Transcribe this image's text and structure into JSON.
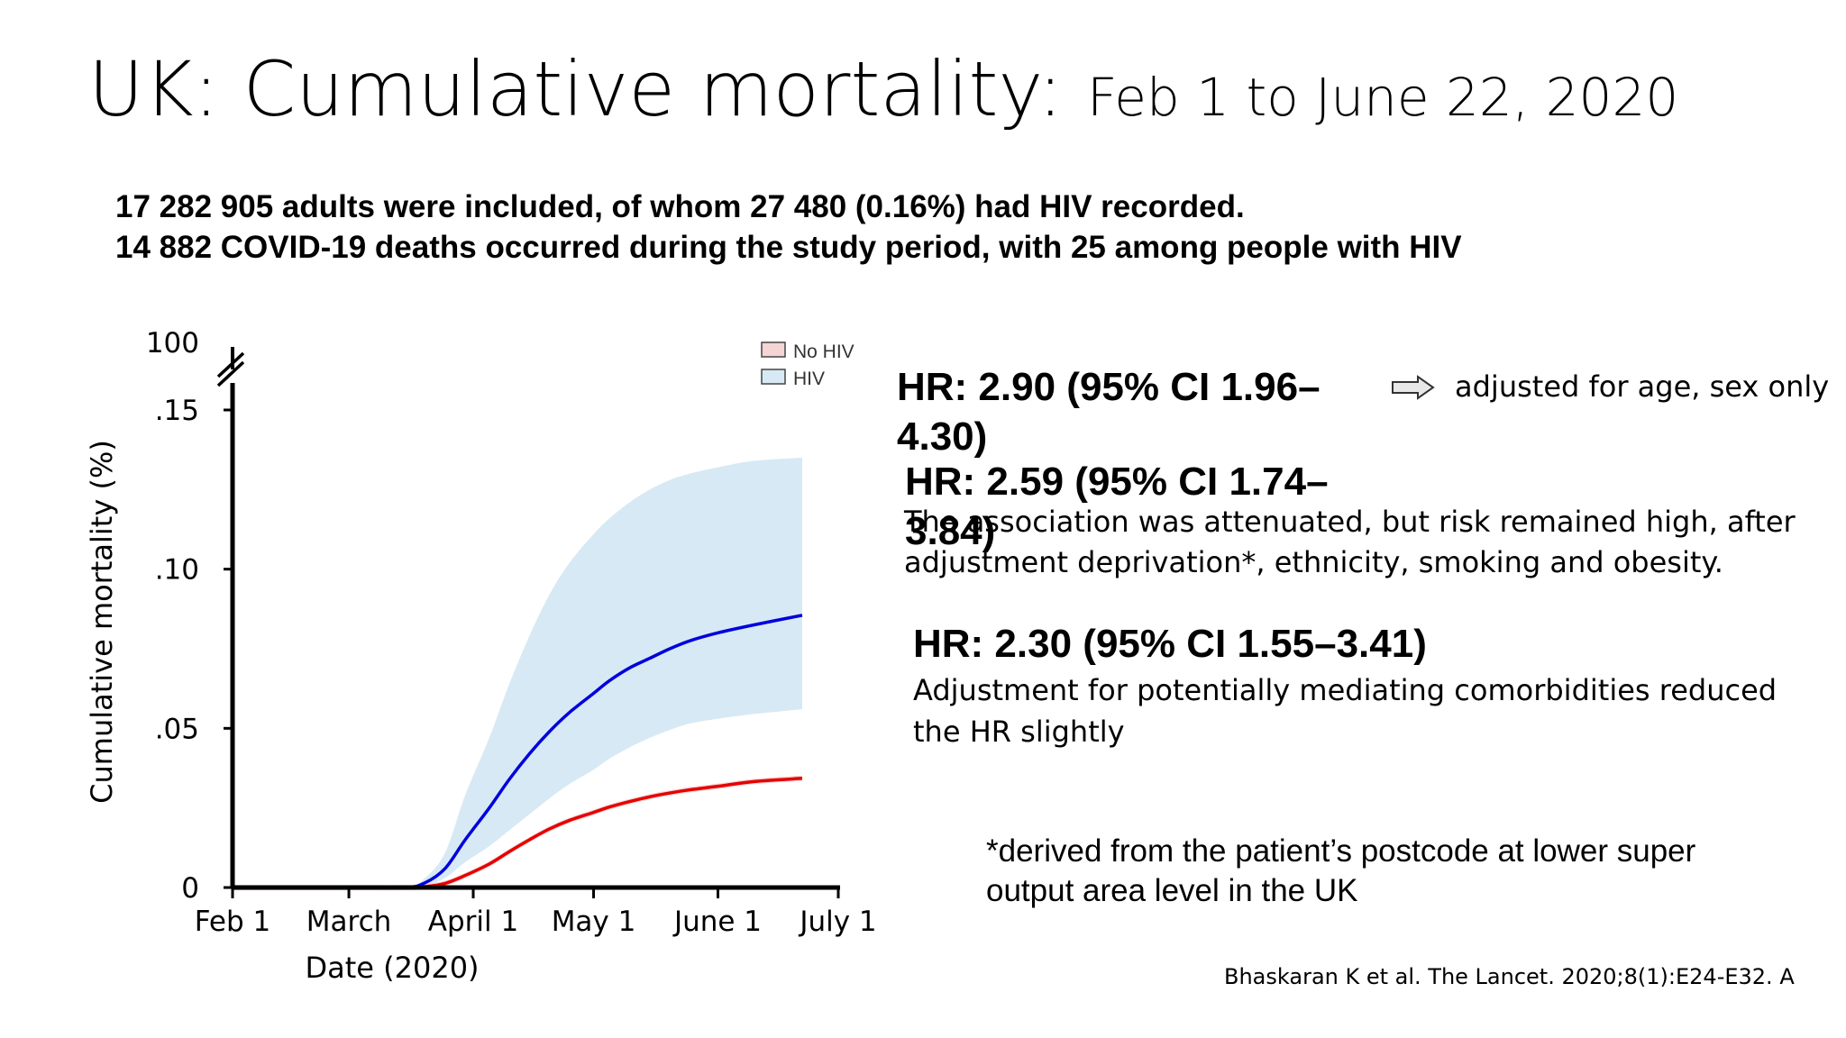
{
  "title": {
    "main": "UK: Cumulative mortality:",
    "sub": "Feb 1 to June 22, 2020"
  },
  "summary": [
    "17 282 905 adults were included, of whom 27 480 (0.16%) had HIV recorded.",
    "14 882 COVID-19 deaths occurred during the study period, with 25 among people with HIV"
  ],
  "chart_data": {
    "type": "line",
    "xlabel": "Date (2020)",
    "ylabel": "Cumulative mortality (%)",
    "x_ticks": [
      "Feb 1",
      "March",
      "April 1",
      "May 1",
      "June 1",
      "July 1"
    ],
    "y_ticks": [
      "0",
      ".05",
      ".10",
      ".15"
    ],
    "y_break_label": "100",
    "ylim": [
      0,
      0.15
    ],
    "xlim": [
      "2020-02-01",
      "2020-07-01"
    ],
    "legend_position": "top-right",
    "x": [
      "2020-02-01",
      "2020-03-01",
      "2020-03-15",
      "2020-03-20",
      "2020-03-25",
      "2020-03-30",
      "2020-04-05",
      "2020-04-10",
      "2020-04-15",
      "2020-04-20",
      "2020-04-25",
      "2020-05-01",
      "2020-05-05",
      "2020-05-10",
      "2020-05-15",
      "2020-05-20",
      "2020-05-25",
      "2020-06-01",
      "2020-06-10",
      "2020-06-22"
    ],
    "series": [
      {
        "name": "No HIV",
        "color": "#e60000",
        "band_color": "#f5d4d4",
        "values": [
          0,
          0,
          0,
          0.0003,
          0.0013,
          0.0038,
          0.0074,
          0.0113,
          0.015,
          0.0184,
          0.0211,
          0.0236,
          0.0253,
          0.027,
          0.0285,
          0.0297,
          0.0307,
          0.0318,
          0.0333,
          0.0343
        ]
      },
      {
        "name": "HIV",
        "color": "#0000dd",
        "band_color": "#d7e9f4",
        "values": [
          0,
          0,
          0,
          0.0015,
          0.006,
          0.015,
          0.025,
          0.034,
          0.042,
          0.049,
          0.055,
          0.061,
          0.065,
          0.069,
          0.072,
          0.075,
          0.0775,
          0.08,
          0.0825,
          0.0855
        ],
        "ci_lower": [
          0,
          0,
          0,
          0.0007,
          0.003,
          0.008,
          0.013,
          0.018,
          0.023,
          0.028,
          0.0325,
          0.037,
          0.0405,
          0.044,
          0.047,
          0.0495,
          0.0515,
          0.053,
          0.0545,
          0.056
        ],
        "ci_upper": [
          0,
          0,
          0,
          0.003,
          0.011,
          0.029,
          0.047,
          0.064,
          0.079,
          0.092,
          0.102,
          0.111,
          0.116,
          0.121,
          0.125,
          0.128,
          0.13,
          0.132,
          0.134,
          0.135
        ]
      }
    ]
  },
  "hr": [
    {
      "headline": "HR: 2.90 (95% CI 1.96– 4.30)",
      "note": "adjusted for age, sex only"
    },
    {
      "headline": "HR: 2.59 (95% CI 1.74– 3.84)",
      "note": "The association was attenuated, but risk remained high, after adjustment deprivation*, ethnicity, smoking and obesity."
    },
    {
      "headline": "HR: 2.30 (95% CI 1.55–3.41)",
      "note": "Adjustment for potentially mediating comorbidities reduced the HR slightly"
    }
  ],
  "hr_lines": {
    "h1": [
      "HR: 2.90 (95% CI 1.96–",
      "4.30)"
    ],
    "h2": [
      "HR: 2.59 (95% CI 1.74–",
      "3.84)"
    ],
    "n2": [
      "The association was attenuated, but risk remained high, after",
      "adjustment deprivation*, ethnicity, smoking and obesity."
    ],
    "n3": [
      "Adjustment for potentially mediating comorbidities reduced",
      "the HR slightly"
    ]
  },
  "footnote": [
    "*derived from the patient’s postcode at lower super",
    "output area level in the UK"
  ],
  "citation": "Bhaskaran K et al.  The Lancet. 2020;8(1):E24-E32. A"
}
